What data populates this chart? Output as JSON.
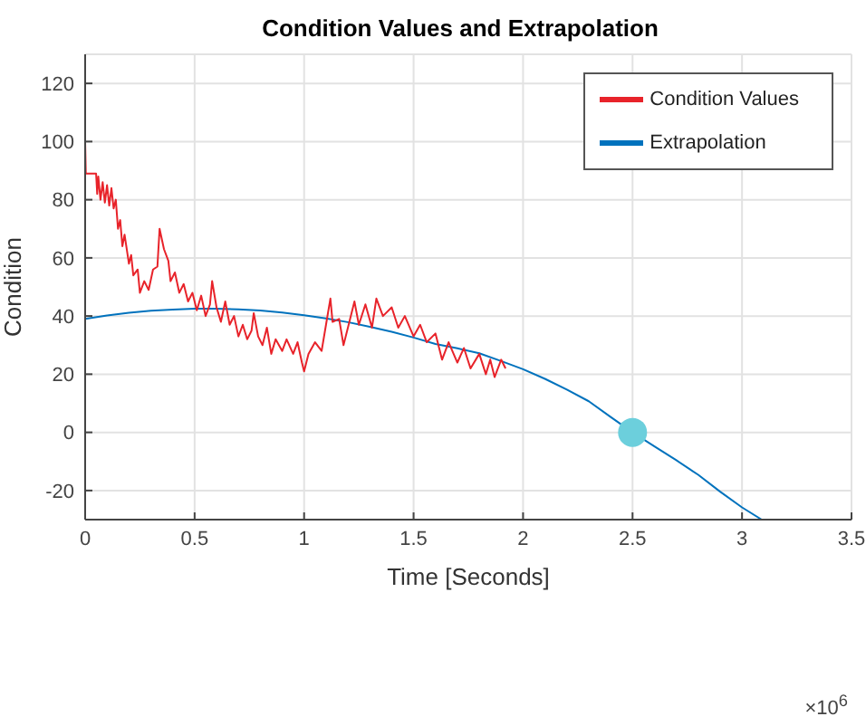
{
  "chart_data": {
    "type": "line",
    "title": "Condition Values and Extrapolation",
    "xlabel": "Time [Seconds]",
    "ylabel": "Condition",
    "annotations": [
      "×10$^{6}$"
    ],
    "xlim": [
      0,
      3.5
    ],
    "xticks": [
      0,
      0.5,
      1,
      1.5,
      2,
      2.5,
      3,
      3.5
    ],
    "ylim": [
      -30,
      130
    ],
    "yticks": [
      -20,
      0,
      20,
      40,
      60,
      80,
      100,
      120
    ],
    "grid": true,
    "legend": "top right",
    "line_style": "solid",
    "series": [
      {
        "name": "Extrapolation",
        "color": "#0072bd",
        "marker": "none",
        "x": [
          0,
          0.1,
          0.2,
          0.3,
          0.4,
          0.5,
          0.6,
          0.7,
          0.8,
          0.9,
          1,
          1.1,
          1.2,
          1.3,
          1.4,
          1.5,
          1.6,
          1.7,
          1.8,
          1.9,
          2,
          2.1,
          2.2,
          2.3,
          2.4,
          2.5,
          2.6,
          2.7,
          2.8,
          2.9,
          3,
          3.09
        ],
        "values": [
          39,
          40.2,
          41.1,
          41.8,
          42.2,
          42.5,
          42.5,
          42.3,
          41.9,
          41.2,
          40.3,
          39.2,
          37.9,
          36.3,
          34.6,
          32.6,
          30.4,
          28.9,
          27.2,
          24.5,
          21.7,
          18.4,
          14.7,
          10.7,
          5.3,
          0,
          -4.8,
          -9.6,
          -14.6,
          -20.4,
          -25.8,
          -30
        ]
      },
      {
        "name": "Condition Values",
        "color": "#e8232a",
        "marker": "none",
        "x": [
          0,
          0.003,
          0.05,
          0.055,
          0.06,
          0.07,
          0.08,
          0.09,
          0.1,
          0.11,
          0.12,
          0.13,
          0.14,
          0.15,
          0.16,
          0.17,
          0.18,
          0.2,
          0.21,
          0.22,
          0.24,
          0.25,
          0.27,
          0.29,
          0.31,
          0.33,
          0.34,
          0.36,
          0.38,
          0.39,
          0.41,
          0.43,
          0.45,
          0.47,
          0.49,
          0.51,
          0.53,
          0.55,
          0.57,
          0.58,
          0.6,
          0.62,
          0.64,
          0.66,
          0.68,
          0.7,
          0.72,
          0.74,
          0.76,
          0.77,
          0.79,
          0.81,
          0.83,
          0.85,
          0.87,
          0.9,
          0.92,
          0.95,
          0.97,
          0.99,
          1,
          1.02,
          1.05,
          1.08,
          1.1,
          1.12,
          1.13,
          1.16,
          1.18,
          1.2,
          1.23,
          1.25,
          1.28,
          1.31,
          1.33,
          1.36,
          1.4,
          1.43,
          1.46,
          1.5,
          1.53,
          1.56,
          1.6,
          1.63,
          1.66,
          1.7,
          1.73,
          1.76,
          1.8,
          1.83,
          1.85,
          1.87,
          1.9,
          1.92
        ],
        "values": [
          100,
          89,
          89,
          82,
          88,
          80,
          86,
          79,
          85,
          78,
          84,
          77,
          80,
          70,
          73,
          64,
          68,
          58,
          61,
          54,
          56,
          48,
          52,
          49,
          56,
          57,
          70,
          63,
          59,
          52,
          55,
          48,
          51,
          45,
          48,
          42,
          47,
          40,
          44,
          52,
          43,
          38,
          45,
          37,
          40,
          33,
          37,
          32,
          35,
          41,
          33,
          30,
          36,
          27,
          32,
          28,
          32,
          27,
          31,
          24,
          21,
          27,
          31,
          28,
          37,
          46,
          38,
          39,
          30,
          36,
          45,
          37,
          44,
          36,
          46,
          40,
          43,
          36,
          40,
          33,
          37,
          31,
          34,
          25,
          31,
          24,
          29,
          22,
          27,
          20,
          25,
          19,
          25,
          22
        ]
      },
      {
        "type": "scatter",
        "color": "#6ccfdc",
        "marker": "circle",
        "x": [
          2.5
        ],
        "values": [
          0
        ]
      }
    ]
  }
}
